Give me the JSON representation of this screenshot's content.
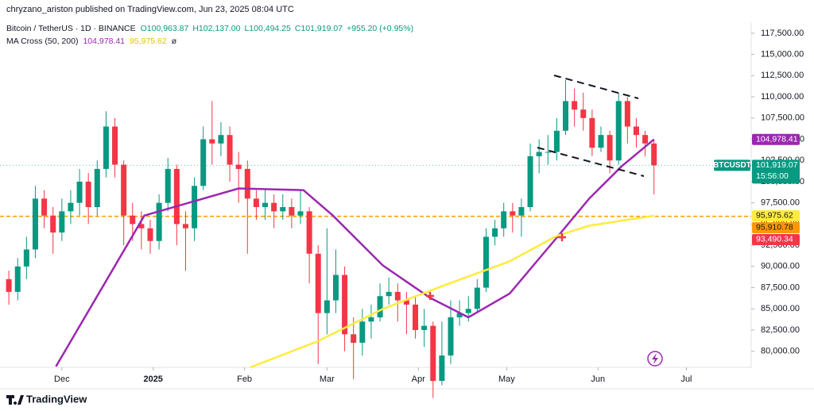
{
  "header": {
    "author_line": "chryzano_ariston published on TradingView.com, Jun 23, 2025 08:04 UTC",
    "footer": "TradingView"
  },
  "chart_data": {
    "type": "candlestick",
    "symbol_line": "Bitcoin / TetherUS · 1D · BINANCE",
    "ohlc_labels": [
      "O100,963.87",
      "H102,137.00",
      "L100,494.25",
      "C101,919.07",
      "+955.20 (+0.95%)"
    ],
    "indicator": "MA Cross (50, 200)",
    "indicator_suffix": "ø",
    "up_color": "#089981",
    "down_color": "#f23645",
    "grid": false,
    "xlim": [
      -21,
      234
    ],
    "xticks": [
      {
        "value": 0,
        "label": "Dec"
      },
      {
        "value": 31,
        "label": "2025"
      },
      {
        "value": 62,
        "label": "Feb"
      },
      {
        "value": 90,
        "label": "Mar"
      },
      {
        "value": 121,
        "label": "Apr"
      },
      {
        "value": 151,
        "label": "May"
      },
      {
        "value": 182,
        "label": "Jun"
      },
      {
        "value": 212,
        "label": "Jul"
      }
    ],
    "ylim": [
      78100,
      118800
    ],
    "yticks": [
      {
        "value": 80000,
        "label": "80,000.00"
      },
      {
        "value": 82500,
        "label": "82,500.00"
      },
      {
        "value": 85000,
        "label": "85,000.00"
      },
      {
        "value": 87500,
        "label": "87,500.00"
      },
      {
        "value": 90000,
        "label": "90,000.00"
      },
      {
        "value": 92500,
        "label": "92,500.00"
      },
      {
        "value": 95000,
        "label": "95,000.00"
      },
      {
        "value": 97500,
        "label": "97,500.00"
      },
      {
        "value": 100000,
        "label": "100,000.00"
      },
      {
        "value": 102500,
        "label": "102,500.00"
      },
      {
        "value": 105000,
        "label": "105,000.00"
      },
      {
        "value": 107500,
        "label": "107,500.00"
      },
      {
        "value": 110000,
        "label": "110,000.00"
      },
      {
        "value": 112500,
        "label": "112,500.00"
      },
      {
        "value": 115000,
        "label": "115,000.00"
      },
      {
        "value": 117500,
        "label": "117,500.00"
      }
    ],
    "x": [
      -18,
      -15,
      -12,
      -9,
      -6,
      -3,
      0,
      3,
      6,
      9,
      12,
      15,
      18,
      21,
      24,
      27,
      30,
      33,
      36,
      39,
      42,
      45,
      48,
      51,
      54,
      57,
      60,
      63,
      66,
      69,
      72,
      75,
      78,
      81,
      84,
      87,
      90,
      93,
      96,
      99,
      102,
      105,
      108,
      111,
      114,
      117,
      120,
      123,
      126,
      129,
      132,
      135,
      138,
      141,
      144,
      147,
      150,
      153,
      156,
      159,
      162,
      165,
      168,
      171,
      174,
      177,
      180,
      183,
      186,
      189,
      192,
      195,
      198,
      201
    ],
    "open": [
      88500,
      87000,
      90000,
      92000,
      98000,
      96000,
      94000,
      96500,
      97500,
      100000,
      97000,
      101500,
      106500,
      102000,
      96000,
      95000,
      94500,
      93000,
      97500,
      101500,
      95000,
      94500,
      99500,
      105000,
      104500,
      105500,
      102000,
      101500,
      98000,
      97000,
      97500,
      96500,
      97000,
      96000,
      96500,
      91500,
      84500,
      86000,
      89000,
      82000,
      81000,
      83500,
      84000,
      86500,
      87000,
      86000,
      85500,
      82500,
      83000,
      76500,
      79500,
      84000,
      84500,
      85000,
      87500,
      93500,
      94500,
      96500,
      96000,
      97000,
      103000,
      103500,
      103500,
      106000,
      109500,
      108500,
      107500,
      104000,
      105500,
      102500,
      109500,
      106500,
      105500,
      104500
    ],
    "high": [
      89500,
      91000,
      93500,
      99500,
      99000,
      97000,
      98000,
      99000,
      101500,
      101000,
      102500,
      108300,
      107500,
      102500,
      97500,
      96500,
      95500,
      98500,
      102800,
      102000,
      96500,
      100500,
      106500,
      109500,
      107000,
      106500,
      103500,
      102500,
      99000,
      99000,
      98500,
      98500,
      98000,
      99000,
      97000,
      92500,
      94500,
      92000,
      90000,
      84000,
      85000,
      85500,
      88000,
      88700,
      88000,
      87000,
      86500,
      85000,
      83500,
      83500,
      86000,
      86000,
      86500,
      88500,
      94500,
      95500,
      97500,
      97500,
      98000,
      104500,
      105000,
      105500,
      107500,
      112000,
      111000,
      110500,
      108500,
      106500,
      106000,
      110500,
      110000,
      107500,
      106000,
      105000
    ],
    "low": [
      85500,
      86000,
      88500,
      91000,
      94500,
      91500,
      93000,
      95000,
      96000,
      95000,
      96000,
      100500,
      100500,
      92500,
      93000,
      92000,
      91500,
      92000,
      96500,
      92500,
      89500,
      93000,
      99000,
      102000,
      103000,
      100000,
      97500,
      91500,
      95500,
      95500,
      94500,
      95500,
      94500,
      95000,
      88000,
      78500,
      82000,
      84500,
      80000,
      76700,
      79500,
      81500,
      83500,
      85500,
      83500,
      82000,
      81500,
      80500,
      74500,
      76000,
      78500,
      83000,
      83500,
      84500,
      87000,
      92500,
      93500,
      94000,
      93500,
      96500,
      101000,
      102000,
      102500,
      105500,
      106500,
      106000,
      103000,
      103500,
      101000,
      102000,
      104500,
      104000,
      103000,
      98500
    ],
    "close": [
      87000,
      90000,
      92000,
      98000,
      96000,
      94000,
      96500,
      97500,
      100000,
      97000,
      101500,
      106500,
      102000,
      96000,
      95000,
      94500,
      93000,
      97500,
      101500,
      95000,
      94500,
      99500,
      105000,
      104500,
      105500,
      102000,
      101500,
      98000,
      97000,
      97500,
      96500,
      97000,
      96000,
      96500,
      91500,
      84500,
      86000,
      89000,
      82000,
      81000,
      83500,
      84000,
      86500,
      87000,
      86000,
      85500,
      82500,
      83000,
      76500,
      79500,
      84000,
      84500,
      85000,
      87500,
      93500,
      94500,
      96500,
      96000,
      97000,
      103000,
      103500,
      103500,
      106000,
      109500,
      108500,
      107500,
      104000,
      105500,
      102500,
      109500,
      106500,
      105500,
      104500,
      101919.07
    ],
    "ma_series": [
      {
        "color": "#9c27b0",
        "legend_value": "104,978.41",
        "x": [
          -2,
          28,
          44,
          60,
          82,
          92,
          109,
          125,
          138,
          152,
          168,
          179,
          190,
          201
        ],
        "values": [
          78200,
          96000,
          97600,
          99200,
          99000,
          96000,
          90100,
          86300,
          84000,
          86800,
          93400,
          98000,
          101800,
          104978.41
        ]
      },
      {
        "color": "#ffeb3b",
        "legend_value": "95,975.62",
        "x": [
          64,
          87,
          109,
          130,
          152,
          168,
          179,
          190,
          201
        ],
        "values": [
          78100,
          81200,
          85000,
          87800,
          90600,
          93600,
          94800,
          95400,
          95975.62
        ]
      }
    ],
    "horizontal_line": {
      "value": 95910.78,
      "color": "#ff9800"
    },
    "symbol_tag": "BTCUSDT",
    "countdown": "15:56:00",
    "price_labels": [
      {
        "value": 104978.41,
        "label": "104,978.41",
        "color": "#9c27b0",
        "text_color": "#ffffff"
      },
      {
        "value": 101919.07,
        "label": "101,919.07",
        "color": "#089981",
        "text_color": "#ffffff"
      },
      {
        "value": 95975.62,
        "label": "95,975.62",
        "color": "#ffeb3b",
        "text_color": "#131722"
      },
      {
        "value": 95910.78,
        "label": "95,910.78",
        "color": "#ff9800",
        "text_color": "#131722"
      },
      {
        "value": 93490.34,
        "label": "93,490.34",
        "color": "#f23645",
        "text_color": "#ffffff"
      }
    ]
  }
}
